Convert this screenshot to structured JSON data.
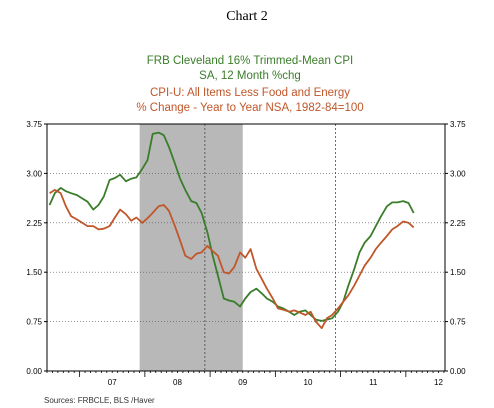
{
  "header": {
    "chart_label": "Chart 2"
  },
  "chart_data": {
    "type": "line",
    "titles": [
      {
        "text": "FRB Cleveland 16% Trimmed-Mean CPI",
        "color": "#3a7d2a"
      },
      {
        "text": "SA, 12 Month %chg",
        "color": "#3a7d2a"
      },
      {
        "text": "CPI-U: All Items Less Food and Energy",
        "color": "#c0572a"
      },
      {
        "text": "% Change - Year to Year    NSA, 1982-84=100",
        "color": "#c0572a"
      }
    ],
    "x_range": [
      2006.5,
      2012.6
    ],
    "ylim": [
      0.0,
      3.75
    ],
    "y_ticks": [
      "0.00",
      "0.75",
      "1.50",
      "2.25",
      "3.00",
      "3.75"
    ],
    "x_tick_labels": [
      {
        "label": "07",
        "x": 2007.0
      },
      {
        "label": "08",
        "x": 2008.0
      },
      {
        "label": "09",
        "x": 2009.0
      },
      {
        "label": "10",
        "x": 2010.0
      },
      {
        "label": "11",
        "x": 2011.0
      },
      {
        "label": "12",
        "x": 2012.0
      }
    ],
    "recession_shade": {
      "start": 2007.92,
      "end": 2009.5,
      "color": "#b8b8b8"
    },
    "dashed_vlines": [
      2008.92,
      2010.92
    ],
    "series": [
      {
        "color": "#3a7d2a",
        "x": [
          2006.54,
          2006.62,
          2006.71,
          2006.79,
          2006.87,
          2006.96,
          2007.04,
          2007.12,
          2007.21,
          2007.29,
          2007.37,
          2007.46,
          2007.54,
          2007.62,
          2007.71,
          2007.79,
          2007.87,
          2007.96,
          2008.04,
          2008.12,
          2008.21,
          2008.29,
          2008.37,
          2008.46,
          2008.54,
          2008.62,
          2008.71,
          2008.79,
          2008.87,
          2008.96,
          2009.04,
          2009.12,
          2009.21,
          2009.29,
          2009.37,
          2009.46,
          2009.54,
          2009.62,
          2009.71,
          2009.79,
          2009.87,
          2009.96,
          2010.04,
          2010.12,
          2010.21,
          2010.29,
          2010.37,
          2010.46,
          2010.54,
          2010.62,
          2010.71,
          2010.79,
          2010.87,
          2010.96,
          2011.04,
          2011.12,
          2011.21,
          2011.29,
          2011.37,
          2011.46,
          2011.54,
          2011.62,
          2011.71,
          2011.79,
          2011.87,
          2011.96,
          2012.04,
          2012.12
        ],
        "values": [
          2.52,
          2.7,
          2.78,
          2.73,
          2.7,
          2.67,
          2.62,
          2.57,
          2.45,
          2.52,
          2.65,
          2.9,
          2.93,
          2.98,
          2.88,
          2.92,
          2.94,
          3.07,
          3.2,
          3.6,
          3.62,
          3.58,
          3.4,
          3.15,
          2.92,
          2.75,
          2.58,
          2.55,
          2.4,
          2.1,
          1.75,
          1.45,
          1.1,
          1.07,
          1.05,
          0.98,
          1.1,
          1.2,
          1.25,
          1.18,
          1.1,
          1.05,
          0.98,
          0.95,
          0.9,
          0.85,
          0.9,
          0.92,
          0.85,
          0.78,
          0.76,
          0.78,
          0.8,
          0.9,
          1.05,
          1.3,
          1.55,
          1.8,
          1.95,
          2.05,
          2.2,
          2.35,
          2.5,
          2.56,
          2.56,
          2.58,
          2.55,
          2.4
        ]
      },
      {
        "color": "#c0572a",
        "x": [
          2006.54,
          2006.62,
          2006.71,
          2006.79,
          2006.87,
          2006.96,
          2007.04,
          2007.12,
          2007.21,
          2007.29,
          2007.37,
          2007.46,
          2007.54,
          2007.62,
          2007.71,
          2007.79,
          2007.87,
          2007.96,
          2008.04,
          2008.12,
          2008.21,
          2008.29,
          2008.37,
          2008.46,
          2008.54,
          2008.62,
          2008.71,
          2008.79,
          2008.87,
          2008.96,
          2009.04,
          2009.12,
          2009.21,
          2009.29,
          2009.37,
          2009.46,
          2009.54,
          2009.62,
          2009.71,
          2009.79,
          2009.87,
          2009.96,
          2010.04,
          2010.12,
          2010.21,
          2010.29,
          2010.37,
          2010.46,
          2010.54,
          2010.62,
          2010.71,
          2010.79,
          2010.87,
          2010.96,
          2011.04,
          2011.12,
          2011.21,
          2011.29,
          2011.37,
          2011.46,
          2011.54,
          2011.62,
          2011.71,
          2011.79,
          2011.87,
          2011.96,
          2012.04,
          2012.12
        ],
        "values": [
          2.7,
          2.75,
          2.7,
          2.5,
          2.35,
          2.3,
          2.25,
          2.2,
          2.2,
          2.15,
          2.16,
          2.2,
          2.33,
          2.45,
          2.38,
          2.28,
          2.33,
          2.25,
          2.32,
          2.4,
          2.5,
          2.52,
          2.43,
          2.2,
          1.98,
          1.75,
          1.7,
          1.78,
          1.8,
          1.9,
          1.82,
          1.75,
          1.5,
          1.48,
          1.58,
          1.8,
          1.72,
          1.85,
          1.55,
          1.4,
          1.25,
          1.1,
          0.95,
          0.93,
          0.9,
          0.92,
          0.89,
          0.85,
          0.9,
          0.75,
          0.65,
          0.8,
          0.85,
          0.95,
          1.05,
          1.15,
          1.3,
          1.45,
          1.6,
          1.72,
          1.85,
          1.95,
          2.05,
          2.15,
          2.2,
          2.27,
          2.25,
          2.18
        ]
      }
    ],
    "source": "Sources:  FRBCLE, BLS /Haver"
  }
}
